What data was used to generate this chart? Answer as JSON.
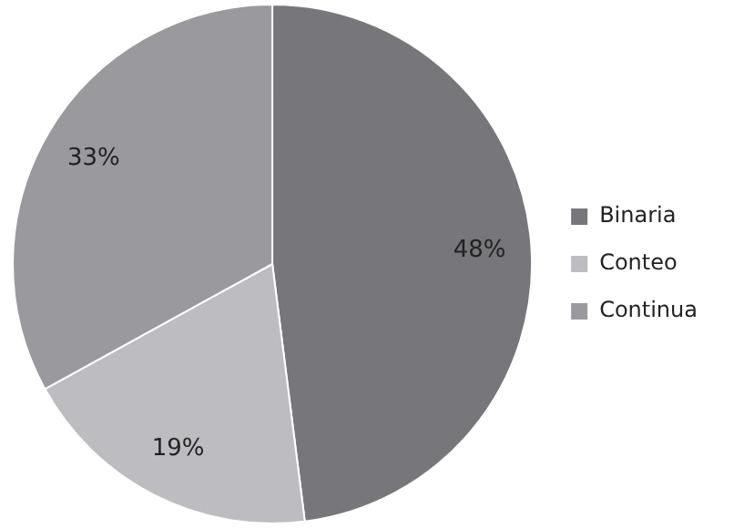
{
  "chart_data": {
    "type": "pie",
    "categories": [
      "Binaria",
      "Conteo",
      "Continua"
    ],
    "values": [
      48,
      19,
      33
    ],
    "colors": [
      "#77777b",
      "#bdbdc1",
      "#9a9a9e"
    ],
    "value_labels": [
      "48%",
      "19%",
      "33%"
    ],
    "legend": "right"
  }
}
